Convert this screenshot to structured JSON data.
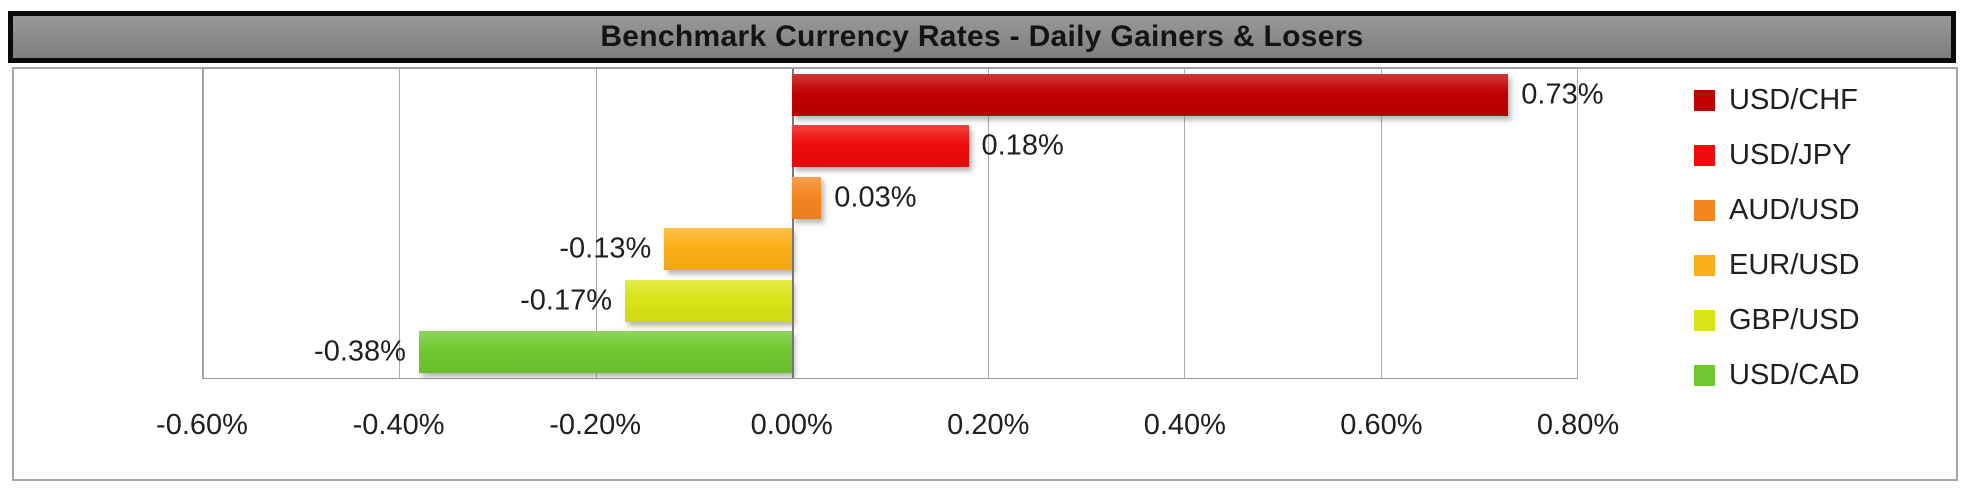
{
  "title": "Benchmark Currency Rates - Daily Gainers & Losers",
  "chart_data": {
    "type": "bar",
    "orientation": "horizontal",
    "title": "Benchmark Currency Rates - Daily Gainers & Losers",
    "categories": [
      "USD/CHF",
      "USD/JPY",
      "AUD/USD",
      "EUR/USD",
      "GBP/USD",
      "USD/CAD"
    ],
    "values": [
      0.73,
      0.18,
      0.03,
      -0.13,
      -0.17,
      -0.38
    ],
    "value_labels": [
      "0.73%",
      "0.18%",
      "0.03%",
      "-0.13%",
      "-0.17%",
      "-0.38%"
    ],
    "colors": [
      "#c00000",
      "#ee0b0b",
      "#f5861f",
      "#fcae17",
      "#d9e417",
      "#70c830"
    ],
    "x_ticks": [
      -0.6,
      -0.4,
      -0.2,
      0,
      0.2,
      0.4,
      0.6,
      0.8
    ],
    "x_tick_labels": [
      "-0.60%",
      "-0.40%",
      "-0.20%",
      "0.00%",
      "0.20%",
      "0.40%",
      "0.60%",
      "0.80%"
    ],
    "xlim": [
      -0.6,
      0.8
    ],
    "grid": true,
    "legend_position": "right",
    "legend": [
      "USD/CHF",
      "USD/JPY",
      "AUD/USD",
      "EUR/USD",
      "GBP/USD",
      "USD/CAD"
    ]
  },
  "colors": {
    "header_bg": "#8a8a8a",
    "header_border": "#000000",
    "gridline": "#ababab",
    "zero_line": "#7c7c7c",
    "text": "#1f1f1f"
  }
}
